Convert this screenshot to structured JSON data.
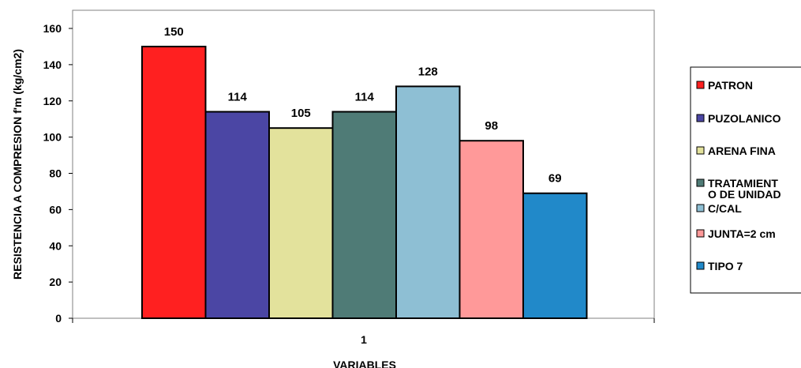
{
  "chart_data": {
    "type": "bar",
    "title": "",
    "xlabel": "VARIABLES",
    "ylabel": "RESISTENCIA A COMPRESION f'm  (kg/cm2)",
    "categories": [
      "1"
    ],
    "ylim": [
      0,
      160
    ],
    "yticks": [
      0,
      20,
      40,
      60,
      80,
      100,
      120,
      140,
      160
    ],
    "grid": false,
    "legend_position": "right",
    "series": [
      {
        "name": "PATRON",
        "values": [
          150
        ],
        "color": "#FF2020"
      },
      {
        "name": "PUZOLANICO",
        "values": [
          114
        ],
        "color": "#4B46A4"
      },
      {
        "name": "ARENA FINA",
        "values": [
          105
        ],
        "color": "#E3E29C"
      },
      {
        "name": "TRATAMIENTO DE UNIDAD",
        "values": [
          114
        ],
        "color": "#4F7B76"
      },
      {
        "name": "C/CAL",
        "values": [
          128
        ],
        "color": "#8EBFD4"
      },
      {
        "name": "JUNTA=2 cm",
        "values": [
          98
        ],
        "color": "#FF9999"
      },
      {
        "name": "TIPO 7",
        "values": [
          69
        ],
        "color": "#2189C9"
      }
    ],
    "legend_lines": [
      [
        "PATRON"
      ],
      [
        "PUZOLANICO"
      ],
      [
        "ARENA FINA"
      ],
      [
        "TRATAMIENT",
        "O DE UNIDAD"
      ],
      [
        "C/CAL"
      ],
      [
        "JUNTA=2 cm"
      ],
      [
        "TIPO 7"
      ]
    ]
  }
}
